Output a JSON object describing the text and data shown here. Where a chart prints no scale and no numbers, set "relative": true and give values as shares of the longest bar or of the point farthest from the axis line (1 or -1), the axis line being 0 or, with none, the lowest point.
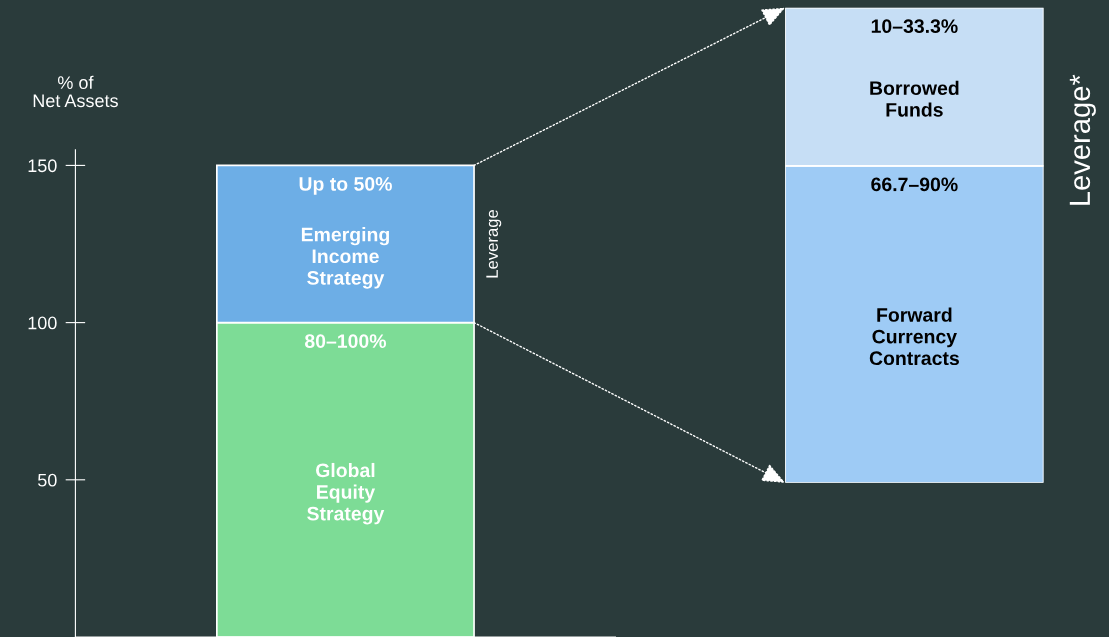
{
  "chart_data": [
    {
      "type": "bar",
      "stacked": true,
      "ylabel": "% of Net Assets",
      "categories": [
        null
      ],
      "ylim": [
        0,
        155
      ],
      "yticks": [
        50,
        100,
        150
      ],
      "grid": false,
      "legend": false,
      "series": [
        {
          "name": "Global Equity Strategy",
          "color": "#7ddc96",
          "values": [
            100
          ]
        },
        {
          "name": "Emerging Income Strategy",
          "color": "#6daee6",
          "values": [
            50
          ]
        }
      ],
      "annotations": [
        {
          "text": "80–100%",
          "y": 100
        },
        {
          "text": "Up to 50%",
          "y": 150
        },
        "Leverage"
      ]
    },
    {
      "type": "bar",
      "stacked": true,
      "relative": true,
      "categories": [
        null
      ],
      "grid": false,
      "legend": false,
      "series": [
        {
          "name": "Forward Currency Contracts",
          "color": "#9ecbf5",
          "values": [
            0.667
          ]
        },
        {
          "name": "Borrowed Funds",
          "color": "#c6def5",
          "values": [
            0.333
          ]
        }
      ],
      "annotations": [
        {
          "text": "66.7–90%",
          "y": 0.667
        },
        {
          "text": "10–33.3%",
          "y": 1
        },
        "Leverage*"
      ]
    }
  ]
}
